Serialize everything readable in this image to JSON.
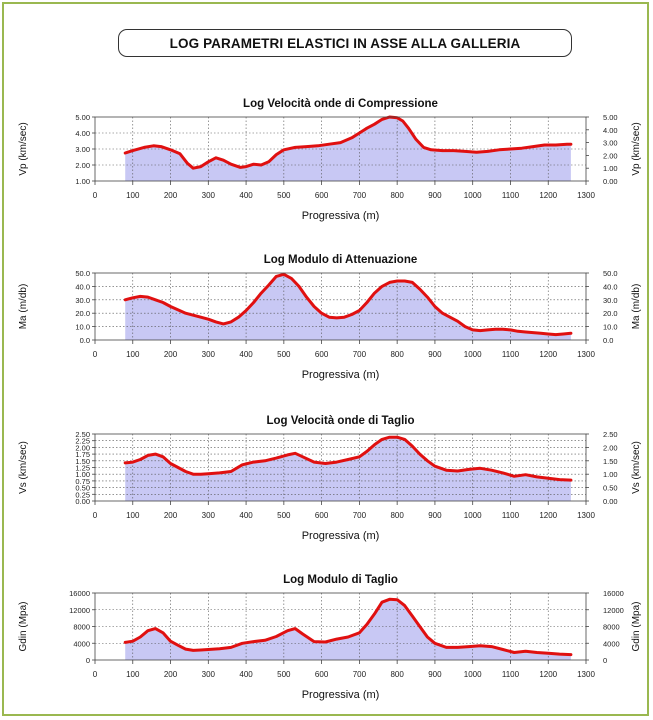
{
  "page": {
    "title": "LOG PARAMETRI ELASTICI IN ASSE ALLA GALLERIA",
    "accent_color": "#9ab850"
  },
  "style": {
    "fill_color": "#c8c8f4",
    "line_color": "#e01010",
    "grid_color": "#555555"
  },
  "chart_data": [
    {
      "type": "area",
      "title": "Log Velocità onde di Compressione",
      "xlabel": "Progressiva (m)",
      "ylabel_left": "Vp (km/sec)",
      "ylabel_right": "Vp (km/sec)",
      "xlim": [
        0,
        1300
      ],
      "xticks": [
        "0",
        "100",
        "200",
        "300",
        "400",
        "500",
        "600",
        "700",
        "800",
        "900",
        "1000",
        "1100",
        "1200",
        "1300"
      ],
      "ylim": [
        1.0,
        5.0
      ],
      "yticks_left": [
        "1.00",
        "2.00",
        "3.00",
        "4.00",
        "5.00"
      ],
      "yticks_right": [
        "0.00",
        "1.00",
        "2.00",
        "3.00",
        "4.00",
        "5.00"
      ],
      "grid": true,
      "x": [
        80,
        100,
        130,
        155,
        175,
        200,
        225,
        245,
        260,
        280,
        300,
        320,
        340,
        360,
        385,
        400,
        420,
        440,
        460,
        480,
        500,
        530,
        560,
        590,
        620,
        650,
        680,
        700,
        720,
        740,
        760,
        780,
        800,
        815,
        830,
        850,
        870,
        890,
        920,
        950,
        980,
        1010,
        1040,
        1070,
        1100,
        1130,
        1160,
        1190,
        1220,
        1250,
        1260
      ],
      "y": [
        2.75,
        2.9,
        3.1,
        3.2,
        3.15,
        2.95,
        2.7,
        2.1,
        1.8,
        1.9,
        2.2,
        2.45,
        2.3,
        2.05,
        1.85,
        1.9,
        2.05,
        2.0,
        2.2,
        2.65,
        2.95,
        3.1,
        3.15,
        3.2,
        3.3,
        3.4,
        3.7,
        4.0,
        4.3,
        4.55,
        4.85,
        5.0,
        4.95,
        4.75,
        4.3,
        3.6,
        3.1,
        2.95,
        2.9,
        2.9,
        2.85,
        2.8,
        2.85,
        2.95,
        3.0,
        3.05,
        3.15,
        3.25,
        3.25,
        3.3,
        3.3
      ]
    },
    {
      "type": "area",
      "title": "Log Modulo di Attenuazione",
      "xlabel": "Progressiva (m)",
      "ylabel_left": "Ma (m/db)",
      "ylabel_right": "Ma (m/db)",
      "xlim": [
        0,
        1300
      ],
      "xticks": [
        "0",
        "100",
        "200",
        "300",
        "400",
        "500",
        "600",
        "700",
        "800",
        "900",
        "1000",
        "1100",
        "1200",
        "1300"
      ],
      "ylim": [
        0,
        50
      ],
      "yticks_left": [
        "0.0",
        "10.0",
        "20.0",
        "30.0",
        "40.0",
        "50.0"
      ],
      "yticks_right": [
        "0.0",
        "10.0",
        "20.0",
        "30.0",
        "40.0",
        "50.0"
      ],
      "grid": true,
      "x": [
        80,
        100,
        120,
        140,
        160,
        180,
        200,
        220,
        240,
        260,
        280,
        300,
        320,
        340,
        360,
        380,
        400,
        420,
        440,
        460,
        480,
        500,
        520,
        540,
        560,
        580,
        600,
        620,
        640,
        660,
        680,
        700,
        720,
        740,
        760,
        780,
        800,
        820,
        840,
        860,
        880,
        900,
        920,
        940,
        960,
        980,
        1000,
        1020,
        1040,
        1060,
        1080,
        1100,
        1120,
        1140,
        1160,
        1180,
        1200,
        1220,
        1240,
        1260
      ],
      "y": [
        30,
        31.5,
        32.5,
        32,
        30,
        28,
        25,
        22.5,
        20,
        18.5,
        17,
        15.5,
        13.5,
        12,
        13.5,
        17,
        22,
        28,
        35,
        41,
        47.5,
        49,
        46,
        40,
        32,
        25,
        20,
        17,
        16.5,
        17,
        19,
        22,
        28,
        35,
        40,
        43,
        44,
        44,
        43,
        38,
        32,
        25,
        20,
        17,
        14,
        10,
        7.5,
        7,
        7.5,
        8,
        8,
        7.5,
        6.5,
        6,
        5.5,
        5,
        4.5,
        4,
        4.5,
        5
      ]
    },
    {
      "type": "area",
      "title": "Log Velocità onde di Taglio",
      "xlabel": "Progressiva (m)",
      "ylabel_left": "Vs (km/sec)",
      "ylabel_right": "Vs (km/sec)",
      "xlim": [
        0,
        1300
      ],
      "xticks": [
        "0",
        "100",
        "200",
        "300",
        "400",
        "500",
        "600",
        "700",
        "800",
        "900",
        "1000",
        "1100",
        "1200",
        "1300"
      ],
      "ylim": [
        0,
        2.5
      ],
      "yticks_left": [
        "0.00",
        "0.25",
        "0.50",
        "0.75",
        "1.00",
        "1.25",
        "1.50",
        "1.75",
        "2.00",
        "2.25",
        "2.50"
      ],
      "yticks_right": [
        "0.00",
        "0.50",
        "1.00",
        "1.50",
        "2.00",
        "2.50"
      ],
      "grid": true,
      "x": [
        80,
        100,
        120,
        140,
        160,
        180,
        200,
        220,
        240,
        260,
        280,
        300,
        330,
        360,
        390,
        420,
        450,
        480,
        510,
        530,
        550,
        580,
        610,
        640,
        670,
        700,
        720,
        740,
        760,
        780,
        800,
        820,
        840,
        860,
        880,
        900,
        930,
        960,
        990,
        1020,
        1050,
        1080,
        1110,
        1140,
        1170,
        1200,
        1230,
        1260
      ],
      "y": [
        1.42,
        1.45,
        1.55,
        1.7,
        1.75,
        1.65,
        1.4,
        1.25,
        1.1,
        1.0,
        1.0,
        1.02,
        1.05,
        1.1,
        1.35,
        1.45,
        1.5,
        1.6,
        1.72,
        1.78,
        1.65,
        1.45,
        1.4,
        1.45,
        1.55,
        1.65,
        1.85,
        2.1,
        2.3,
        2.38,
        2.38,
        2.3,
        2.05,
        1.75,
        1.5,
        1.3,
        1.15,
        1.12,
        1.18,
        1.22,
        1.15,
        1.05,
        0.92,
        0.98,
        0.9,
        0.85,
        0.8,
        0.78
      ]
    },
    {
      "type": "area",
      "title": "Log Modulo di Taglio",
      "xlabel": "Progressiva (m)",
      "ylabel_left": "Gdin (Mpa)",
      "ylabel_right": "Gdin (Mpa)",
      "xlim": [
        0,
        1300
      ],
      "xticks": [
        "0",
        "100",
        "200",
        "300",
        "400",
        "500",
        "600",
        "700",
        "800",
        "900",
        "1000",
        "1100",
        "1200",
        "1300"
      ],
      "ylim": [
        0,
        16000
      ],
      "yticks_left": [
        "0",
        "4000",
        "8000",
        "12000",
        "16000"
      ],
      "yticks_right": [
        "0",
        "4000",
        "8000",
        "12000",
        "16000"
      ],
      "grid": true,
      "x": [
        80,
        100,
        120,
        140,
        160,
        180,
        200,
        220,
        240,
        260,
        280,
        300,
        330,
        360,
        390,
        420,
        450,
        480,
        510,
        530,
        550,
        580,
        610,
        640,
        670,
        700,
        720,
        740,
        760,
        780,
        800,
        820,
        840,
        860,
        880,
        900,
        930,
        960,
        990,
        1020,
        1050,
        1080,
        1110,
        1140,
        1170,
        1200,
        1230,
        1260
      ],
      "y": [
        4200,
        4500,
        5500,
        7000,
        7500,
        6500,
        4500,
        3500,
        2600,
        2300,
        2400,
        2500,
        2700,
        3000,
        4000,
        4400,
        4700,
        5600,
        7000,
        7500,
        6200,
        4400,
        4300,
        5000,
        5500,
        6500,
        8500,
        11000,
        13800,
        14500,
        14400,
        13000,
        10500,
        8000,
        5500,
        4000,
        3000,
        3000,
        3200,
        3400,
        3200,
        2500,
        1800,
        2100,
        1800,
        1600,
        1400,
        1300
      ]
    }
  ]
}
